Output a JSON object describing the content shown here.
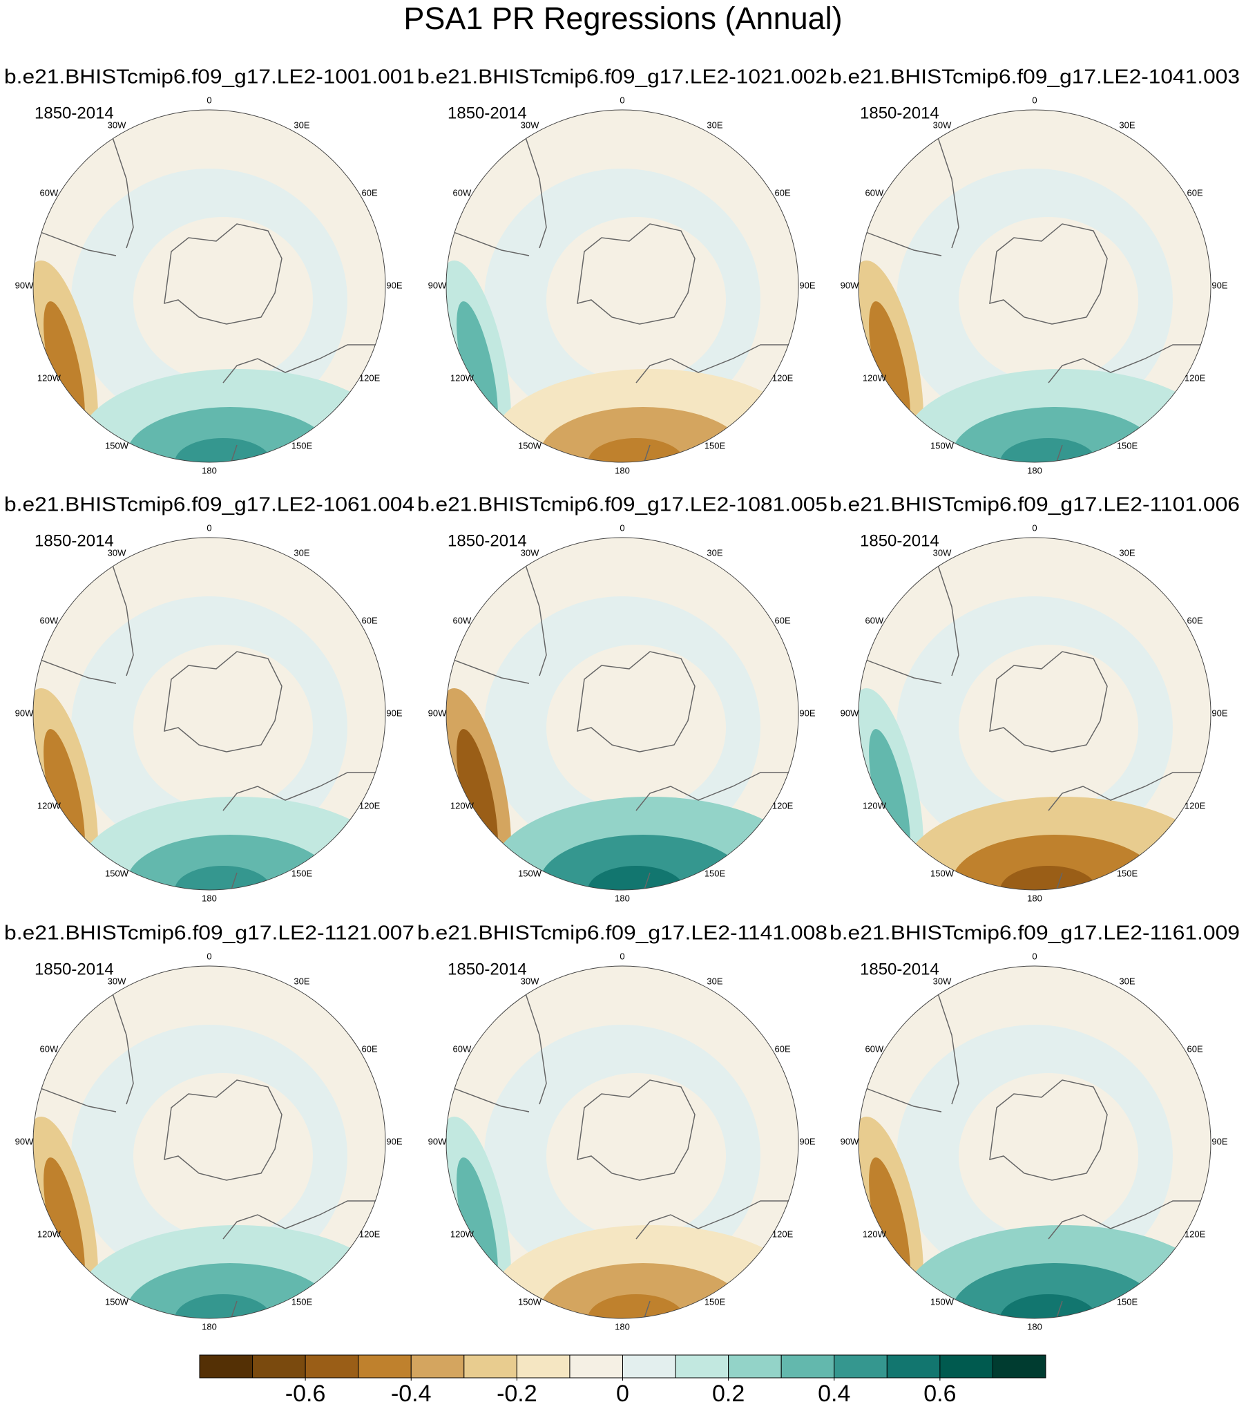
{
  "title": "PSA1 PR Regressions (Annual)",
  "panels": [
    {
      "title": "b.e21.BHISTcmip6.f09_g17.LE2-1001.001",
      "period": "1850-2014"
    },
    {
      "title": "b.e21.BHISTcmip6.f09_g17.LE2-1021.002",
      "period": "1850-2014"
    },
    {
      "title": "b.e21.BHISTcmip6.f09_g17.LE2-1041.003",
      "period": "1850-2014"
    },
    {
      "title": "b.e21.BHISTcmip6.f09_g17.LE2-1061.004",
      "period": "1850-2014"
    },
    {
      "title": "b.e21.BHISTcmip6.f09_g17.LE2-1081.005",
      "period": "1850-2014"
    },
    {
      "title": "b.e21.BHISTcmip6.f09_g17.LE2-1101.006",
      "period": "1850-2014"
    },
    {
      "title": "b.e21.BHISTcmip6.f09_g17.LE2-1121.007",
      "period": "1850-2014"
    },
    {
      "title": "b.e21.BHISTcmip6.f09_g17.LE2-1141.008",
      "period": "1850-2014"
    },
    {
      "title": "b.e21.BHISTcmip6.f09_g17.LE2-1161.009",
      "period": "1850-2014"
    }
  ],
  "lon_labels": [
    "0",
    "30E",
    "60E",
    "90E",
    "120E",
    "150E",
    "180",
    "150W",
    "120W",
    "90W",
    "60W",
    "30W"
  ],
  "colorbar": {
    "colors": [
      "#543005",
      "#7a4a0e",
      "#9a5e17",
      "#bf812d",
      "#d4a55f",
      "#e8cc8f",
      "#f5e6c2",
      "#f5f0e4",
      "#e3efee",
      "#c2e8e0",
      "#93d3c8",
      "#63b8ad",
      "#35978f",
      "#12766f",
      "#005a4f",
      "#003c30"
    ],
    "range": [
      -0.8,
      0.8
    ],
    "ticks": [
      -0.6,
      -0.4,
      -0.2,
      0,
      0.2,
      0.4,
      0.6
    ]
  }
}
